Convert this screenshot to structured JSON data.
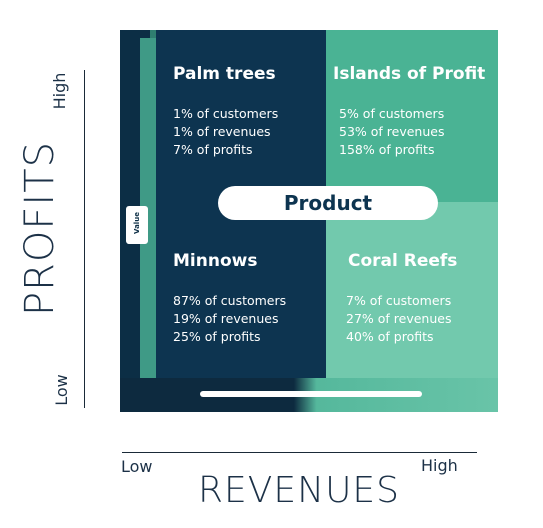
{
  "y_axis": {
    "title": "PROFITS",
    "high": "High",
    "low": "Low"
  },
  "x_axis": {
    "title": "REVENUES",
    "low": "Low",
    "high": "High"
  },
  "center_label": "Product",
  "side_label": "Value",
  "quadrants": [
    {
      "title": "Palm trees",
      "stats": [
        "1% of customers",
        "1% of revenues",
        "7% of profits"
      ]
    },
    {
      "title": "Islands of Profit",
      "stats": [
        "5% of customers",
        "53% of revenues",
        "158% of profits"
      ]
    },
    {
      "title": "Minnows",
      "stats": [
        "87% of customers",
        "19% of revenues",
        "25% of profits"
      ]
    },
    {
      "title": "Coral Reefs",
      "stats": [
        "7% of customers",
        "27% of revenues",
        "40% of profits"
      ]
    }
  ],
  "colors": {
    "navy": "#0d3450",
    "teal": "#4ab394",
    "light_teal": "#72c9ad",
    "axis_text": "#1c3147"
  }
}
